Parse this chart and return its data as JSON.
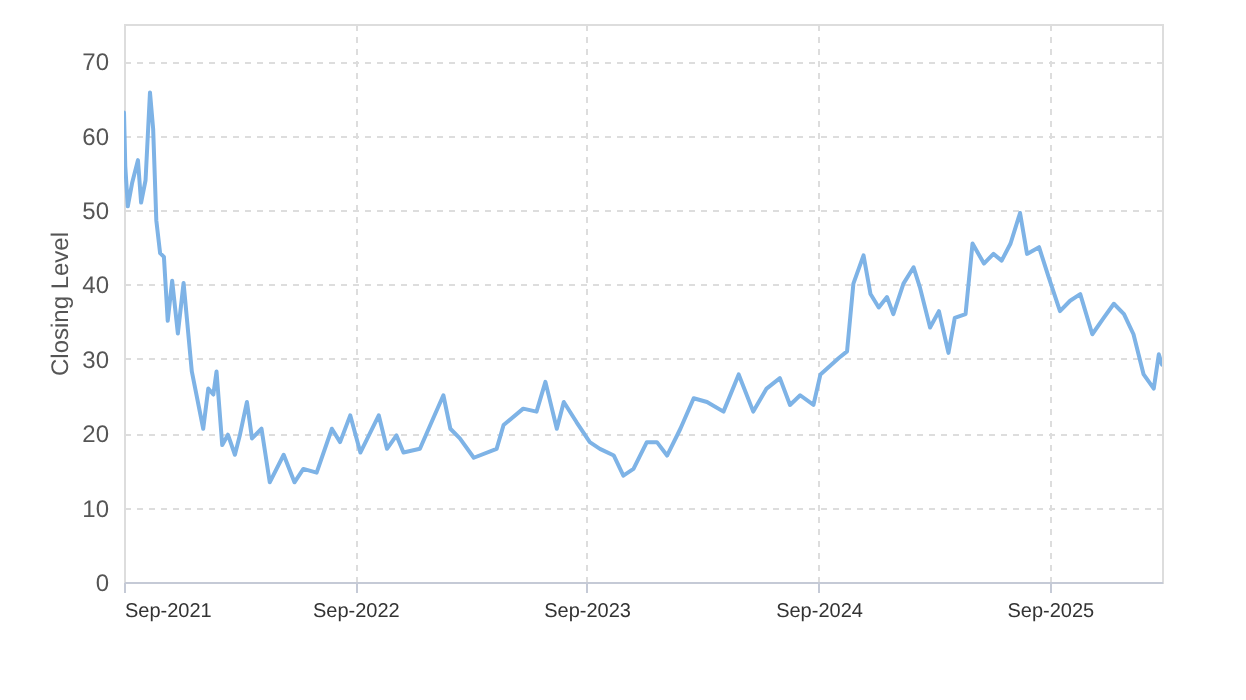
{
  "chart_data": {
    "type": "line",
    "ylabel": "Closing Level",
    "grid": true,
    "line_style": "solid",
    "marker": "none",
    "xlim": [
      "2021-09-01",
      "2026-02-25"
    ],
    "ylim": [
      0,
      75
    ],
    "yticks": [
      0,
      10,
      20,
      30,
      40,
      50,
      60,
      70
    ],
    "xticks": [
      {
        "value": "2021-09-01",
        "label": "Sep-2021"
      },
      {
        "value": "2022-09-01",
        "label": "Sep-2022"
      },
      {
        "value": "2023-09-01",
        "label": "Sep-2023"
      },
      {
        "value": "2024-09-01",
        "label": "Sep-2024"
      },
      {
        "value": "2025-09-01",
        "label": "Sep-2025"
      }
    ],
    "x": [
      "2021-09-01",
      "2021-09-03",
      "2021-09-07",
      "2021-09-14",
      "2021-09-23",
      "2021-09-28",
      "2021-10-05",
      "2021-10-12",
      "2021-10-17",
      "2021-10-22",
      "2021-10-28",
      "2021-11-03",
      "2021-11-09",
      "2021-11-16",
      "2021-11-25",
      "2021-12-04",
      "2021-12-17",
      "2022-01-04",
      "2022-01-12",
      "2022-01-20",
      "2022-01-25",
      "2022-02-03",
      "2022-02-12",
      "2022-02-23",
      "2022-03-03",
      "2022-03-14",
      "2022-03-22",
      "2022-04-06",
      "2022-04-19",
      "2022-05-11",
      "2022-05-28",
      "2022-06-11",
      "2022-07-02",
      "2022-07-26",
      "2022-08-08",
      "2022-08-24",
      "2022-09-09",
      "2022-10-08",
      "2022-10-21",
      "2022-11-05",
      "2022-11-16",
      "2022-12-12",
      "2023-01-02",
      "2023-01-18",
      "2023-01-29",
      "2023-02-13",
      "2023-03-07",
      "2023-04-12",
      "2023-04-23",
      "2023-05-24",
      "2023-06-14",
      "2023-06-28",
      "2023-07-16",
      "2023-07-27",
      "2023-08-16",
      "2023-09-06",
      "2023-09-22",
      "2023-10-14",
      "2023-10-29",
      "2023-11-14",
      "2023-12-05",
      "2023-12-21",
      "2024-01-06",
      "2024-01-27",
      "2024-02-17",
      "2024-03-09",
      "2024-04-04",
      "2024-04-28",
      "2024-05-21",
      "2024-06-11",
      "2024-07-02",
      "2024-07-18",
      "2024-08-03",
      "2024-08-24",
      "2024-09-04",
      "2024-10-03",
      "2024-10-16",
      "2024-10-26",
      "2024-11-11",
      "2024-11-22",
      "2024-12-05",
      "2024-12-18",
      "2024-12-28",
      "2025-01-13",
      "2025-01-29",
      "2025-02-08",
      "2025-02-24",
      "2025-03-10",
      "2025-03-25",
      "2025-04-04",
      "2025-04-21",
      "2025-05-02",
      "2025-05-20",
      "2025-06-04",
      "2025-06-17",
      "2025-07-01",
      "2025-07-16",
      "2025-07-27",
      "2025-08-15",
      "2025-08-30",
      "2025-09-17",
      "2025-10-03",
      "2025-10-19",
      "2025-11-07",
      "2025-11-25",
      "2025-12-11",
      "2025-12-27",
      "2026-01-11",
      "2026-01-27",
      "2026-02-12",
      "2026-02-20",
      "2026-02-25"
    ],
    "series": [
      {
        "color": "#7eb3e6",
        "values": [
          63.1,
          55.9,
          50.5,
          53.7,
          56.7,
          51,
          54,
          65.8,
          60.9,
          48.6,
          44.2,
          43.7,
          35.1,
          40.5,
          33.4,
          40.2,
          28.3,
          20.6,
          26,
          25.2,
          28.3,
          18.4,
          19.8,
          17.1,
          19.8,
          24.2,
          19.3,
          20.6,
          13.4,
          17.1,
          13.4,
          15.2,
          14.7,
          20.6,
          18.8,
          22.4,
          17.4,
          22.4,
          17.9,
          19.7,
          17.4,
          17.9,
          22,
          25.1,
          20.6,
          19.3,
          16.7,
          17.9,
          21.1,
          23.3,
          22.9,
          26.9,
          20.6,
          24.2,
          21.5,
          18.8,
          17.9,
          17,
          14.3,
          15.2,
          18.8,
          18.8,
          17,
          20.6,
          24.7,
          24.2,
          22.9,
          27.9,
          22.9,
          26,
          27.4,
          23.8,
          25.1,
          23.8,
          27.9,
          30.1,
          31,
          40.1,
          43.9,
          38.7,
          36.9,
          38.3,
          36,
          40.1,
          42.3,
          39.6,
          34.2,
          36.4,
          30.8,
          35.5,
          36,
          45.5,
          42.8,
          44.1,
          43.2,
          45.5,
          49.6,
          44.1,
          45,
          41,
          36.4,
          37.8,
          38.7,
          33.3,
          35.5,
          37.4,
          36,
          33.3,
          27.9,
          26,
          30.6,
          29.2
        ]
      }
    ]
  }
}
